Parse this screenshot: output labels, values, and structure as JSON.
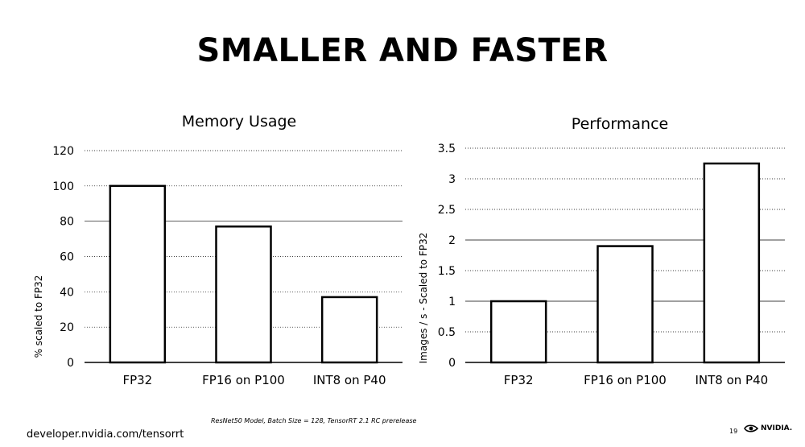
{
  "slide": {
    "title": "SMALLER AND FASTER",
    "footnote": "ResNet50 Model, Batch Size = 128, TensorRT 2.1 RC prerelease",
    "url": "developer.nvidia.com/tensorrt",
    "page_number": "19",
    "logo_text": "NVIDIA.",
    "logo_icon": "nvidia-eye-logo"
  },
  "chart_data": [
    {
      "type": "bar",
      "title": "Memory Usage",
      "xlabel": "",
      "ylabel": "% scaled to FP32",
      "categories": [
        "FP32",
        "FP16 on P100",
        "INT8 on P40"
      ],
      "values": [
        100,
        77,
        37
      ],
      "ylim": [
        0,
        120
      ],
      "yticks": [
        0,
        20,
        40,
        60,
        80,
        100,
        120
      ],
      "ytick_labels": [
        "0",
        "20",
        "40",
        "60",
        "80",
        "100",
        "120"
      ],
      "grid": true,
      "legend": "none"
    },
    {
      "type": "bar",
      "title": "Performance",
      "xlabel": "",
      "ylabel": "Images / s - Scaled to FP32",
      "categories": [
        "FP32",
        "FP16 on P100",
        "INT8 on P40"
      ],
      "values": [
        1,
        1.9,
        3.25
      ],
      "ylim": [
        0,
        3.5
      ],
      "yticks": [
        0,
        0.5,
        1,
        1.5,
        2,
        2.5,
        3,
        3.5
      ],
      "ytick_labels": [
        "0",
        "0.5",
        "1",
        "1.5",
        "2",
        "2.5",
        "3",
        "3.5"
      ],
      "grid": true,
      "legend": "none"
    }
  ]
}
